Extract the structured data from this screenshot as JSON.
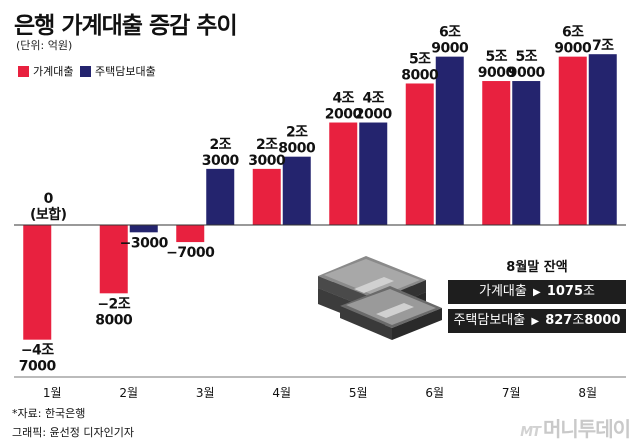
{
  "header": {
    "title": "은행 가계대출 증감 추이",
    "unit": "(단위: 억원)"
  },
  "legend": [
    {
      "label": "가계대출",
      "color": "#e8213f"
    },
    {
      "label": "주택담보대출",
      "color": "#24246e"
    }
  ],
  "chart_data": {
    "type": "bar",
    "categories": [
      "1월",
      "2월",
      "3월",
      "4월",
      "5월",
      "6월",
      "7월",
      "8월"
    ],
    "series": [
      {
        "name": "가계대출",
        "color": "#e8213f",
        "values": [
          -47000,
          -28000,
          -7000,
          23000,
          42000,
          58000,
          59000,
          69000
        ]
      },
      {
        "name": "주택담보대출",
        "color": "#24246e",
        "values": [
          0,
          -3000,
          23000,
          28000,
          42000,
          69000,
          59000,
          70000
        ]
      }
    ],
    "data_labels": {
      "가계대출": [
        [
          "−4조",
          "7000"
        ],
        [
          "−2조",
          "8000"
        ],
        [
          "−7000"
        ],
        [
          "2조",
          "3000"
        ],
        [
          "4조",
          "2000"
        ],
        [
          "5조",
          "8000"
        ],
        [
          "5조",
          "9000"
        ],
        [
          "6조",
          "9000"
        ]
      ],
      "주택담보대출": [
        [
          "0",
          "(보합)"
        ],
        [
          "−3000"
        ],
        [
          "2조",
          "3000"
        ],
        [
          "2조",
          "8000"
        ],
        [
          "4조",
          "2000"
        ],
        [
          "6조",
          "9000"
        ],
        [
          "5조",
          "9000"
        ],
        [
          "7조"
        ]
      ]
    },
    "ylim": [
      -50000,
      75000
    ],
    "grid": false,
    "legend_position": "top-left"
  },
  "callout": {
    "title": "8월말 잔액",
    "items": [
      {
        "label": "가계대출",
        "value": "1075",
        "unit": "조",
        "tail": ""
      },
      {
        "label": "주택담보대출",
        "value": "827",
        "unit": "조",
        "tail": "8000"
      }
    ]
  },
  "footer": {
    "source": "*자료: 한국은행",
    "credit": "그래픽: 윤선정 디자인기자",
    "brand_small": "MT",
    "brand": "머니투데이"
  },
  "colors": {
    "household": "#e8213f",
    "mortgage": "#24246e",
    "axis": "#333333"
  },
  "icons": [
    "money-stack-icon",
    "arrow-right-icon"
  ]
}
